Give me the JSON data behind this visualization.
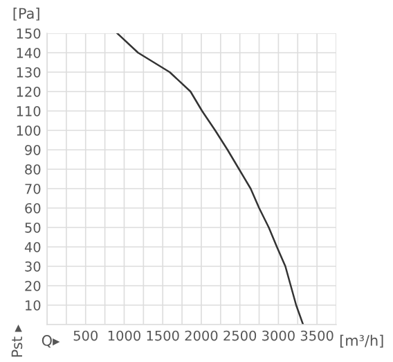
{
  "chart_data": {
    "type": "line",
    "xlabel": "Q▸",
    "ylabel": "Pst ▸",
    "annotations": [
      "[Pa]",
      "[m³/h]"
    ],
    "x": [
      910,
      1180,
      1590,
      1860,
      2010,
      2180,
      2340,
      2490,
      2640,
      2750,
      2875,
      2980,
      3090,
      3160,
      3230,
      3320
    ],
    "series": [
      {
        "color": "#333333",
        "values": [
          150,
          140,
          130,
          120,
          110,
          100,
          90,
          80,
          70,
          60,
          50,
          40,
          30,
          20,
          10,
          0
        ]
      }
    ],
    "xlim": [
      0,
      3750
    ],
    "xticks": [
      {
        "value": 0,
        "label": null
      },
      {
        "value": 250,
        "label": null
      },
      500,
      {
        "value": 750,
        "label": null
      },
      1000,
      {
        "value": 1250,
        "label": null
      },
      1500,
      {
        "value": 1750,
        "label": null
      },
      2000,
      {
        "value": 2250,
        "label": null
      },
      2500,
      {
        "value": 2750,
        "label": null
      },
      3000,
      {
        "value": 3250,
        "label": null
      },
      3500,
      {
        "value": 3750,
        "label": null
      }
    ],
    "ylim": [
      0,
      150
    ],
    "yticks": [
      {
        "value": 0,
        "label": null
      },
      10,
      20,
      30,
      40,
      50,
      60,
      70,
      80,
      90,
      100,
      110,
      120,
      130,
      140,
      150
    ],
    "grid": true,
    "legend": false,
    "marker": "none",
    "line_style": "solid"
  }
}
